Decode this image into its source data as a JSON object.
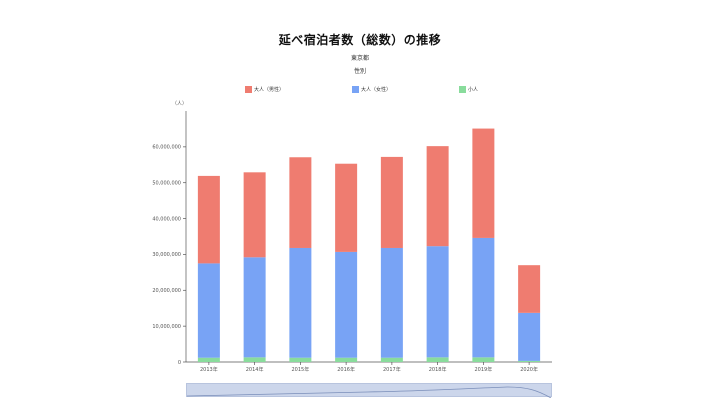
{
  "title": "延べ宿泊者数（総数）の推移",
  "subtitle": "東京都",
  "subtitle2": "性別",
  "unit_label": "（人）",
  "legend": [
    {
      "label": "大人（男性）",
      "color": "#ef7c70"
    },
    {
      "label": "大人（女性）",
      "color": "#78a3f5"
    },
    {
      "label": "小人",
      "color": "#89dc9c"
    }
  ],
  "chart_data": {
    "type": "bar",
    "stacked": true,
    "title": "延べ宿泊者数（総数）の推移",
    "xlabel": "",
    "ylabel": "（人）",
    "categories": [
      "2013年",
      "2014年",
      "2015年",
      "2016年",
      "2017年",
      "2018年",
      "2019年",
      "2020年"
    ],
    "ylim": [
      0,
      70000000
    ],
    "yticks": [
      0,
      10000000,
      20000000,
      30000000,
      40000000,
      50000000,
      60000000
    ],
    "ytick_labels": [
      "0",
      "10,000,000",
      "20,000,000",
      "30,000,000",
      "40,000,000",
      "50,000,000",
      "60,000,000"
    ],
    "series": [
      {
        "name": "小人",
        "color": "#89dc9c",
        "values": [
          1200000,
          1300000,
          1200000,
          1200000,
          1200000,
          1300000,
          1300000,
          300000
        ]
      },
      {
        "name": "大人（女性）",
        "color": "#78a3f5",
        "values": [
          26300000,
          27900000,
          30600000,
          29500000,
          30600000,
          31000000,
          33300000,
          13400000
        ]
      },
      {
        "name": "大人（男性）",
        "color": "#ef7c70",
        "values": [
          24400000,
          23700000,
          25300000,
          24600000,
          25400000,
          27900000,
          30500000,
          13300000
        ]
      }
    ]
  }
}
